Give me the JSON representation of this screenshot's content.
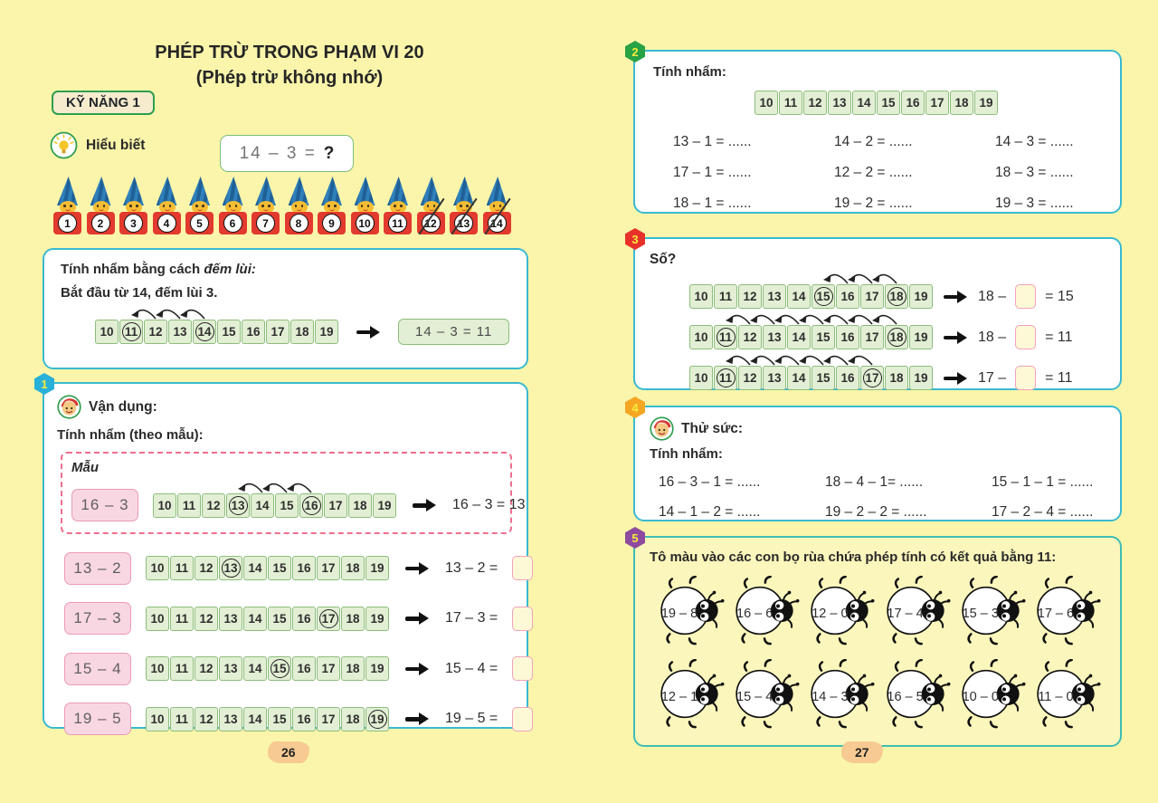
{
  "colors": {
    "page_bg": "#faf5aa",
    "box_border_cyan": "#3ab9d1",
    "section5_border_teal": "#3fbcb4",
    "cell_green_bg": "#e2efd4",
    "cell_green_border": "#8cbd7b",
    "pink_box_bg": "#f9d7e2",
    "pink_box_border": "#ea9ab8",
    "answer_box_bg": "#fdf8d6",
    "answer_box_border": "#f0a2bc",
    "badge1": "#29b0d8",
    "badge2": "#27a244",
    "badge3": "#e8312a",
    "badge4": "#f5a623",
    "badge5": "#8e4a9e",
    "page_badge_bg": "#f6ca92",
    "skill_border_green": "#2f9e4f"
  },
  "numberline_values": [
    "10",
    "11",
    "12",
    "13",
    "14",
    "15",
    "16",
    "17",
    "18",
    "19"
  ],
  "left": {
    "title_line1": "PHÉP TRỪ TRONG PHẠM VI 20",
    "title_line2": "(Phép trừ không nhớ)",
    "skill_label": "KỸ NĂNG 1",
    "understand_label": "Hiểu biết",
    "problem_expr": "14 – 3 =",
    "problem_mark": "?",
    "gnomes": {
      "numbers": [
        1,
        2,
        3,
        4,
        5,
        6,
        7,
        8,
        9,
        10,
        11,
        12,
        13,
        14
      ],
      "crossed": [
        12,
        13,
        14
      ]
    },
    "demo": {
      "line1_prefix": "Tính nhẩm bằng cách ",
      "line1_italic": "đếm lùi:",
      "line2": "Bắt đầu từ 14, đếm lùi 3.",
      "numberline": {
        "circled": [
          11,
          14
        ],
        "arc_from": 11,
        "arc_to": 14
      },
      "result": "14 – 3 = 11"
    },
    "section1": {
      "badge": "1",
      "header": "Vận dụng:",
      "subheader": "Tính nhẩm (theo mẫu):",
      "sample_label": "Mẫu",
      "sample": {
        "op": "16 – 3",
        "numberline": {
          "circled": [
            13,
            16
          ],
          "arc_from": 13,
          "arc_to": 16
        },
        "result": "16 – 3 = 13"
      },
      "rows": [
        {
          "op": "13 – 2",
          "numberline": {
            "circled": [
              13
            ]
          },
          "result": "13 – 2 ="
        },
        {
          "op": "17 – 3",
          "numberline": {
            "circled": [
              17
            ]
          },
          "result": "17 – 3 ="
        },
        {
          "op": "15 – 4",
          "numberline": {
            "circled": [
              15
            ]
          },
          "result": "15 – 4 ="
        },
        {
          "op": "19 – 5",
          "numberline": {
            "circled": [
              19
            ]
          },
          "result": "19 – 5 ="
        }
      ]
    },
    "page_number": "26"
  },
  "right": {
    "section2": {
      "badge": "2",
      "header": "Tính nhẩm:",
      "numberline": {
        "circled": []
      },
      "equations": [
        [
          "13 – 1 = ......",
          "14 – 2 = ......",
          "14 – 3 = ......"
        ],
        [
          "17 – 1 = ......",
          "12 – 2 = ......",
          "18 – 3 = ......"
        ],
        [
          "18 – 1 = ......",
          "19 – 2 = ......",
          "19 – 3 = ......"
        ]
      ]
    },
    "section3": {
      "badge": "3",
      "header": "Số?",
      "rows": [
        {
          "numberline": {
            "circled": [
              15,
              18
            ],
            "arc_from": 15,
            "arc_to": 18
          },
          "prefix": "18 –",
          "suffix": "= 15"
        },
        {
          "numberline": {
            "circled": [
              11,
              18
            ],
            "arc_from": 11,
            "arc_to": 18
          },
          "prefix": "18 –",
          "suffix": "= 11"
        },
        {
          "numberline": {
            "circled": [
              11,
              17
            ],
            "arc_from": 11,
            "arc_to": 17
          },
          "prefix": "17 –",
          "suffix": "= 11"
        }
      ]
    },
    "section4": {
      "badge": "4",
      "header": "Thử sức:",
      "subheader": "Tính nhẩm:",
      "equations": [
        [
          "16 – 3 – 1 = ......",
          "18 – 4 – 1= ......",
          "15 – 1 – 1 = ......"
        ],
        [
          "14 – 1 – 2 = ......",
          "19 – 2 – 2 = ......",
          "17 – 2 – 4 = ......"
        ]
      ]
    },
    "section5": {
      "badge": "5",
      "title": "Tô màu vào các con bọ rùa chứa phép tính có kết quả bằng 11:",
      "bug_rows": [
        [
          "19 – 8",
          "16 – 6",
          "12 – 0",
          "17 – 4",
          "15 – 3",
          "17 – 6"
        ],
        [
          "12 – 1",
          "15 – 4",
          "14 – 3",
          "16 – 5",
          "10 – 0",
          "11 – 0"
        ]
      ]
    },
    "page_number": "27"
  }
}
